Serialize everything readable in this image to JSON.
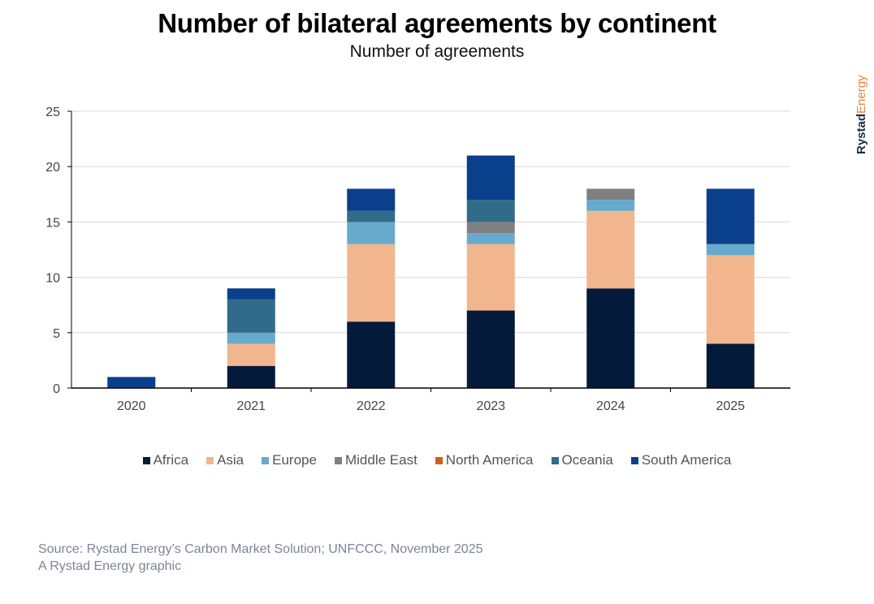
{
  "brand": {
    "part1": "Rystad",
    "part2": "Energy"
  },
  "footer": {
    "source": "Source: Rystad Energy’s Carbon Market Solution; UNFCCC, November 2025",
    "credit": "A Rystad Energy graphic"
  },
  "chart_data": {
    "type": "bar",
    "stacked": true,
    "title": "Number of bilateral agreements by continent",
    "subtitle": "Number of agreements",
    "xlabel": "",
    "ylabel": "",
    "ylim": [
      0,
      25
    ],
    "yticks": [
      0,
      5,
      10,
      15,
      20,
      25
    ],
    "grid": true,
    "legend_position": "bottom",
    "categories": [
      "2020",
      "2021",
      "2022",
      "2023",
      "2024",
      "2025"
    ],
    "series": [
      {
        "name": "Africa",
        "color": "#041a3a",
        "values": [
          0,
          2,
          6,
          7,
          9,
          4
        ]
      },
      {
        "name": "Asia",
        "color": "#f2b68e",
        "values": [
          0,
          2,
          7,
          6,
          7,
          8
        ]
      },
      {
        "name": "Europe",
        "color": "#67aacd",
        "values": [
          0,
          1,
          2,
          1,
          1,
          1
        ]
      },
      {
        "name": "Middle East",
        "color": "#808080",
        "values": [
          0,
          0,
          0,
          1,
          1,
          0
        ]
      },
      {
        "name": "North America",
        "color": "#d0601a",
        "values": [
          0,
          0,
          0,
          0,
          0,
          0
        ]
      },
      {
        "name": "Oceania",
        "color": "#316b8a",
        "values": [
          0,
          3,
          1,
          2,
          0,
          0
        ]
      },
      {
        "name": "South America",
        "color": "#0a3f8c",
        "values": [
          1,
          1,
          2,
          4,
          0,
          5
        ]
      }
    ]
  }
}
